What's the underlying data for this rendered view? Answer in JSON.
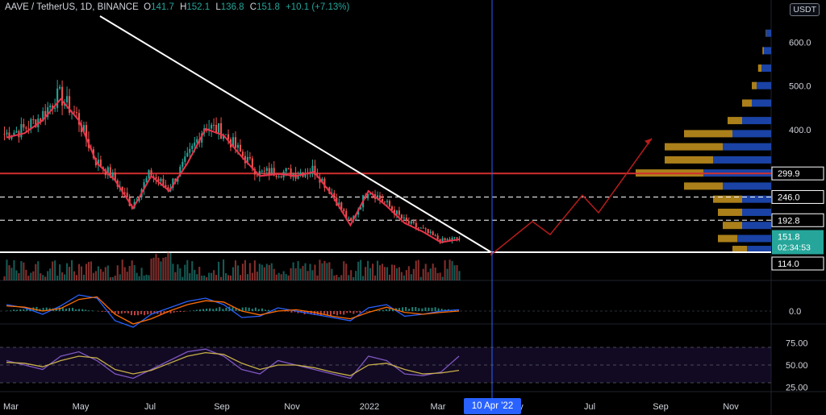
{
  "header": {
    "symbol": "AAVE / TetherUS, 1D, BINANCE",
    "open_label": "O",
    "open": "141.7",
    "high_label": "H",
    "high": "152.1",
    "low_label": "L",
    "low": "136.8",
    "close_label": "C",
    "close": "151.8",
    "change": "+10.1 (+7.13%)"
  },
  "currency_button": "USDT",
  "crosshair_date": "10 Apr '22",
  "price_tags": [
    {
      "text": "299.9",
      "bg": "#000000",
      "fg": "#ffffff",
      "border": "#ffffff",
      "level": 299.9
    },
    {
      "text": "246.0",
      "bg": "#000000",
      "fg": "#ffffff",
      "border": "#ffffff",
      "level": 246.0
    },
    {
      "text": "192.8",
      "bg": "#000000",
      "fg": "#ffffff",
      "border": "#ffffff",
      "level": 192.8
    },
    {
      "text": "114.0",
      "bg": "#000000",
      "fg": "#ffffff",
      "border": "#ffffff",
      "level": 114.0
    }
  ],
  "last_price_tag": {
    "price": "151.8",
    "countdown": "02:34:53",
    "bg": "#26a69a",
    "level": 151.8
  },
  "colors": {
    "background": "#000000",
    "up": "#26a69a",
    "down": "#ef5350",
    "ma": "#e8334a",
    "trendline": "#ffffff",
    "resistance": "#d32f2f",
    "projection": "#b71c1c",
    "crosshair": "#2962ff",
    "macd": "#2962ff",
    "signal": "#ff6d00",
    "rsi": "#7e57c2",
    "rsi_ma": "#c8b04a",
    "vp_up": "#1f4fc2",
    "vp_down": "#c9961e"
  },
  "chart_data": [
    {
      "type": "candlestick",
      "panel": "price",
      "symbol": "AAVE / TetherUS",
      "interval": "1D",
      "exchange": "BINANCE",
      "x_ticks": [
        "Mar",
        "May",
        "Jul",
        "Sep",
        "Nov",
        "2022",
        "Mar",
        "y",
        "Jul",
        "Sep",
        "Nov"
      ],
      "y_ticks": [
        400.0,
        500.0,
        600.0
      ],
      "ylim": [
        114,
        660
      ],
      "close_series": [
        {
          "month": "Mar",
          "close": 390
        },
        {
          "month": "Apr",
          "close": 400
        },
        {
          "month": "Apr",
          "close": 430
        },
        {
          "month": "May",
          "close": 480
        },
        {
          "month": "May",
          "close": 430
        },
        {
          "month": "May",
          "close": 330
        },
        {
          "month": "Jun",
          "close": 290
        },
        {
          "month": "Jun",
          "close": 225
        },
        {
          "month": "Jul",
          "close": 300
        },
        {
          "month": "Jul",
          "close": 265
        },
        {
          "month": "Aug",
          "close": 330
        },
        {
          "month": "Aug",
          "close": 410
        },
        {
          "month": "Sep",
          "close": 395
        },
        {
          "month": "Sep",
          "close": 345
        },
        {
          "month": "Oct",
          "close": 300
        },
        {
          "month": "Oct",
          "close": 305
        },
        {
          "month": "Nov",
          "close": 300
        },
        {
          "month": "Nov",
          "close": 310
        },
        {
          "month": "Dec",
          "close": 255
        },
        {
          "month": "Dec",
          "close": 185
        },
        {
          "month": "Jan",
          "close": 265
        },
        {
          "month": "Jan",
          "close": 230
        },
        {
          "month": "Feb",
          "close": 190
        },
        {
          "month": "Feb",
          "close": 170
        },
        {
          "month": "Mar",
          "close": 145
        },
        {
          "month": "Mar",
          "close": 151.8
        }
      ],
      "annotations": {
        "downtrend_line": {
          "from": {
            "month": "May",
            "price": 660
          },
          "to": {
            "date": "10 Apr '22",
            "price": 114
          }
        },
        "horizontal_resistance": 299.9,
        "dashed_levels": [
          299.9,
          246.0,
          192.8
        ],
        "support": 114.0,
        "projection_path": [
          151.8,
          114,
          190,
          160,
          250,
          210,
          380
        ],
        "volume_profile": [
          {
            "price": 620,
            "up": 1,
            "down": 0.1
          },
          {
            "price": 580,
            "up": 1.5,
            "down": 0.3
          },
          {
            "price": 540,
            "up": 2,
            "down": 0.7
          },
          {
            "price": 500,
            "up": 3,
            "down": 1
          },
          {
            "price": 460,
            "up": 4,
            "down": 2
          },
          {
            "price": 420,
            "up": 6,
            "down": 3
          },
          {
            "price": 390,
            "up": 8,
            "down": 10
          },
          {
            "price": 360,
            "up": 10,
            "down": 12
          },
          {
            "price": 330,
            "up": 12,
            "down": 10
          },
          {
            "price": 300,
            "up": 14,
            "down": 14
          },
          {
            "price": 270,
            "up": 10,
            "down": 8
          },
          {
            "price": 240,
            "up": 6,
            "down": 6
          },
          {
            "price": 210,
            "up": 6,
            "down": 5
          },
          {
            "price": 180,
            "up": 6,
            "down": 4
          },
          {
            "price": 150,
            "up": 7,
            "down": 4
          },
          {
            "price": 125,
            "up": 5,
            "down": 3
          }
        ]
      }
    },
    {
      "type": "line",
      "panel": "macd",
      "y_ticks": [
        0.0
      ],
      "series": [
        {
          "values": [
            10,
            5,
            -5,
            8,
            25,
            20,
            -15,
            -25,
            -5,
            5,
            15,
            20,
            10,
            -10,
            -8,
            5,
            0,
            -5,
            -10,
            -15,
            5,
            10,
            -8,
            -5,
            0,
            2
          ]
        },
        {
          "values": [
            8,
            6,
            0,
            4,
            18,
            22,
            -5,
            -20,
            -12,
            0,
            10,
            16,
            14,
            0,
            -6,
            0,
            2,
            -2,
            -8,
            -12,
            -2,
            6,
            -2,
            -5,
            -2,
            0
          ]
        }
      ]
    },
    {
      "type": "line",
      "panel": "rsi",
      "y_ticks": [
        25.0,
        50.0,
        75.0
      ],
      "ylim": [
        20,
        80
      ],
      "bands": [
        30,
        70
      ],
      "series": [
        {
          "values": [
            55,
            50,
            45,
            60,
            65,
            55,
            40,
            35,
            45,
            55,
            65,
            68,
            60,
            45,
            40,
            55,
            50,
            45,
            40,
            35,
            60,
            55,
            40,
            38,
            42,
            60
          ]
        },
        {
          "values": [
            53,
            52,
            48,
            55,
            60,
            58,
            45,
            40,
            44,
            52,
            60,
            64,
            62,
            52,
            45,
            50,
            50,
            47,
            42,
            38,
            50,
            52,
            45,
            40,
            41,
            44
          ]
        }
      ]
    }
  ]
}
